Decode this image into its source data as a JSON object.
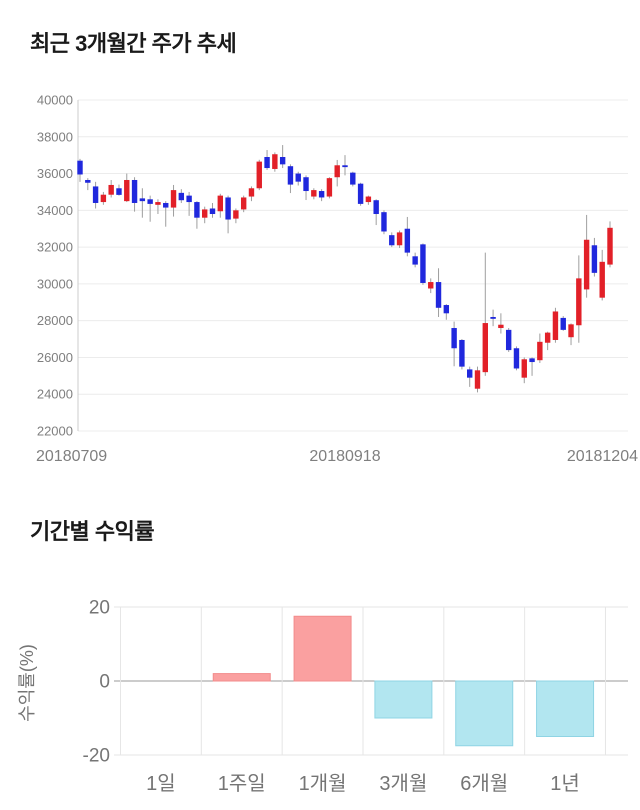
{
  "page": {
    "background": "#ffffff"
  },
  "chart_data": [
    {
      "type": "candlestick",
      "title": "최근 3개월간 주가 추세",
      "xlabel": "",
      "ylabel": "",
      "ylim": [
        22000,
        40000
      ],
      "y_ticks": [
        40000,
        38000,
        36000,
        34000,
        32000,
        30000,
        28000,
        26000,
        24000,
        22000
      ],
      "x_ticks": [
        "20180709",
        "20180918",
        "20181204"
      ],
      "grid": "horizontal",
      "up_color": "#e22028",
      "down_color": "#2028dd",
      "wick_color": "#9e9e9e",
      "candles_ohlc": [
        [
          36700,
          36800,
          35550,
          35950
        ],
        [
          35650,
          35750,
          35100,
          35500
        ],
        [
          35300,
          35550,
          34100,
          34400
        ],
        [
          34450,
          35000,
          34300,
          34850
        ],
        [
          34850,
          35650,
          34700,
          35380
        ],
        [
          35200,
          35400,
          34800,
          34840
        ],
        [
          34500,
          36000,
          34450,
          35650
        ],
        [
          35650,
          35800,
          33930,
          34400
        ],
        [
          34650,
          35200,
          33600,
          34500
        ],
        [
          34600,
          34800,
          33380,
          34350
        ],
        [
          34300,
          34600,
          33800,
          34450
        ],
        [
          34400,
          34500,
          33110,
          34150
        ],
        [
          34150,
          35380,
          33660,
          35100
        ],
        [
          34950,
          35150,
          34400,
          34550
        ],
        [
          34800,
          35000,
          33700,
          34450
        ],
        [
          34450,
          34500,
          33000,
          33600
        ],
        [
          33600,
          34200,
          33300,
          34050
        ],
        [
          34100,
          34400,
          33600,
          33800
        ],
        [
          33950,
          34900,
          33600,
          34800
        ],
        [
          34700,
          34800,
          32750,
          33500
        ],
        [
          33550,
          34100,
          33300,
          34000
        ],
        [
          34050,
          34800,
          33900,
          34700
        ],
        [
          34750,
          35300,
          34500,
          35200
        ],
        [
          35200,
          36750,
          35100,
          36650
        ],
        [
          36900,
          37280,
          36200,
          36300
        ],
        [
          36250,
          37150,
          36100,
          37050
        ],
        [
          36900,
          37550,
          36300,
          36500
        ],
        [
          36400,
          36500,
          34940,
          35400
        ],
        [
          36000,
          36100,
          35350,
          35560
        ],
        [
          35800,
          35900,
          34560,
          35050
        ],
        [
          34750,
          35200,
          34600,
          35100
        ],
        [
          35050,
          35150,
          34500,
          34700
        ],
        [
          34750,
          35800,
          34650,
          35750
        ],
        [
          35800,
          36740,
          35300,
          36450
        ],
        [
          36450,
          37000,
          35900,
          36350
        ],
        [
          36050,
          36100,
          35300,
          35400
        ],
        [
          35450,
          35500,
          34250,
          34350
        ],
        [
          34450,
          34800,
          34300,
          34750
        ],
        [
          34550,
          34600,
          33200,
          33800
        ],
        [
          33900,
          34000,
          32700,
          32850
        ],
        [
          32650,
          32800,
          32000,
          32100
        ],
        [
          32100,
          32900,
          31950,
          32800
        ],
        [
          33000,
          33640,
          31500,
          31700
        ],
        [
          31500,
          31700,
          30900,
          31050
        ],
        [
          32150,
          32200,
          29950,
          30050
        ],
        [
          29750,
          30300,
          29500,
          30100
        ],
        [
          30100,
          30850,
          28200,
          28700
        ],
        [
          28850,
          28900,
          28050,
          28400
        ],
        [
          27600,
          27950,
          25520,
          26500
        ],
        [
          26950,
          27000,
          25350,
          25500
        ],
        [
          25350,
          25500,
          24400,
          24900
        ],
        [
          24300,
          25500,
          24100,
          25300
        ],
        [
          25200,
          31700,
          25000,
          27870
        ],
        [
          28200,
          28600,
          27700,
          28100
        ],
        [
          27600,
          28400,
          27300,
          27780
        ],
        [
          27500,
          27600,
          26300,
          26400
        ],
        [
          26500,
          26600,
          25300,
          25400
        ],
        [
          24900,
          26000,
          24600,
          25900
        ],
        [
          25950,
          26000,
          25000,
          25750
        ],
        [
          25850,
          27300,
          25700,
          26850
        ],
        [
          26800,
          27400,
          26400,
          27350
        ],
        [
          26950,
          28700,
          26800,
          28500
        ],
        [
          28150,
          28250,
          27450,
          27500
        ],
        [
          27100,
          27850,
          26670,
          27800
        ],
        [
          27750,
          31550,
          26800,
          30300
        ],
        [
          29700,
          33750,
          29250,
          32400
        ],
        [
          32100,
          32500,
          30400,
          30600
        ],
        [
          29250,
          31850,
          29100,
          31200
        ],
        [
          31050,
          33400,
          30900,
          33050
        ]
      ]
    },
    {
      "type": "bar",
      "title": "기간별 수익률",
      "ylabel": "수익률(%)",
      "ylim": [
        -20,
        20
      ],
      "y_ticks": [
        20,
        0,
        -20
      ],
      "categories": [
        "1일",
        "1주일",
        "1개월",
        "3개월",
        "6개월",
        "1년"
      ],
      "values": [
        0,
        2,
        17.5,
        -10,
        -17.5,
        -15
      ],
      "grid": "both",
      "positive_color": "#faa0a0",
      "positive_border": "#f28b8b",
      "negative_color": "#b2e6f0",
      "negative_border": "#8fd4e4",
      "zero_line_color": "#999999",
      "grid_color": "#e6e6e6"
    }
  ]
}
